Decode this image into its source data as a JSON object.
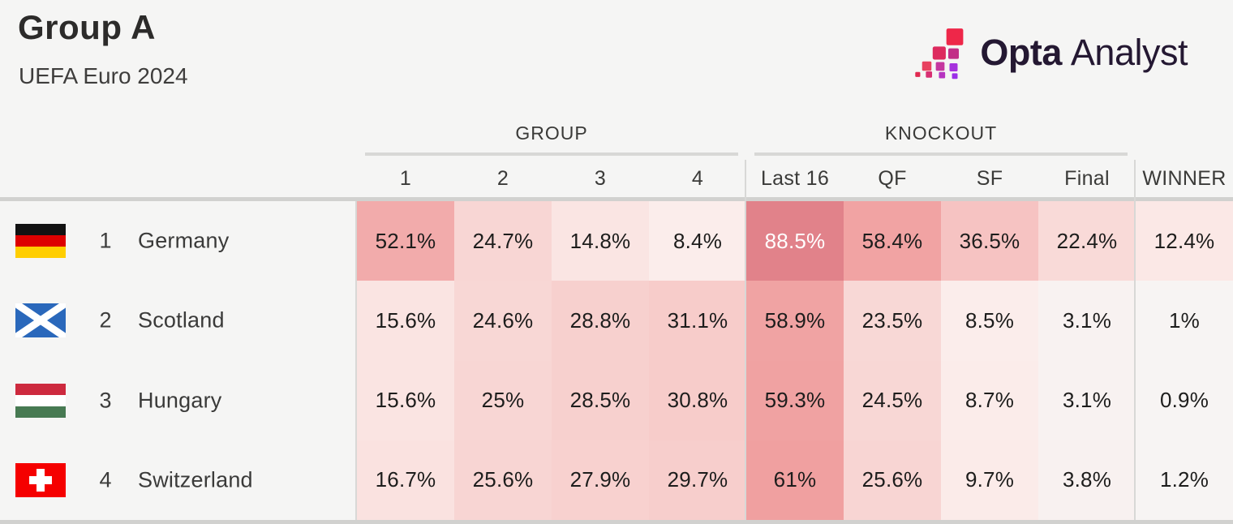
{
  "page": {
    "title": "Group A",
    "subtitle": "UEFA Euro 2024",
    "background": "#f5f5f4"
  },
  "brand": {
    "icon": "opta-stairs-icon",
    "name_bold": "Opta",
    "name_light": "Analyst",
    "ink_color": "#241832"
  },
  "chart_data": {
    "type": "heatmap",
    "title": "Group A",
    "subtitle": "UEFA Euro 2024",
    "unit": "%",
    "column_groups": [
      {
        "label": "GROUP",
        "span": [
          "1",
          "2",
          "3",
          "4"
        ]
      },
      {
        "label": "KNOCKOUT",
        "span": [
          "Last 16",
          "QF",
          "SF",
          "Final"
        ]
      }
    ],
    "columns": [
      "1",
      "2",
      "3",
      "4",
      "Last 16",
      "QF",
      "SF",
      "Final",
      "WINNER"
    ],
    "rows": [
      {
        "rank": "1",
        "team": "Germany",
        "flag_icon": "flag-germany",
        "values": [
          52.1,
          24.7,
          14.8,
          8.4,
          88.5,
          58.4,
          36.5,
          22.4,
          12.4
        ]
      },
      {
        "rank": "2",
        "team": "Scotland",
        "flag_icon": "flag-scotland",
        "values": [
          15.6,
          24.6,
          28.8,
          31.1,
          58.9,
          23.5,
          8.5,
          3.1,
          1
        ]
      },
      {
        "rank": "3",
        "team": "Hungary",
        "flag_icon": "flag-hungary",
        "values": [
          15.6,
          25,
          28.5,
          30.8,
          59.3,
          24.5,
          8.7,
          3.1,
          0.9
        ]
      },
      {
        "rank": "4",
        "team": "Switzerland",
        "flag_icon": "flag-switzerland",
        "values": [
          16.7,
          25.6,
          27.9,
          29.7,
          61,
          25.6,
          9.7,
          3.8,
          1.2
        ]
      }
    ],
    "heat_scale": {
      "stops": [
        [
          0,
          "#f6f5f4"
        ],
        [
          9,
          "#fbecea"
        ],
        [
          16,
          "#fae3e1"
        ],
        [
          25,
          "#f8d6d4"
        ],
        [
          31,
          "#f7ccca"
        ],
        [
          52,
          "#f2abab"
        ],
        [
          61,
          "#f0a0a0"
        ],
        [
          88.5,
          "#e1828a"
        ],
        [
          100,
          "#db707c"
        ]
      ],
      "white_text_above": 75
    }
  }
}
